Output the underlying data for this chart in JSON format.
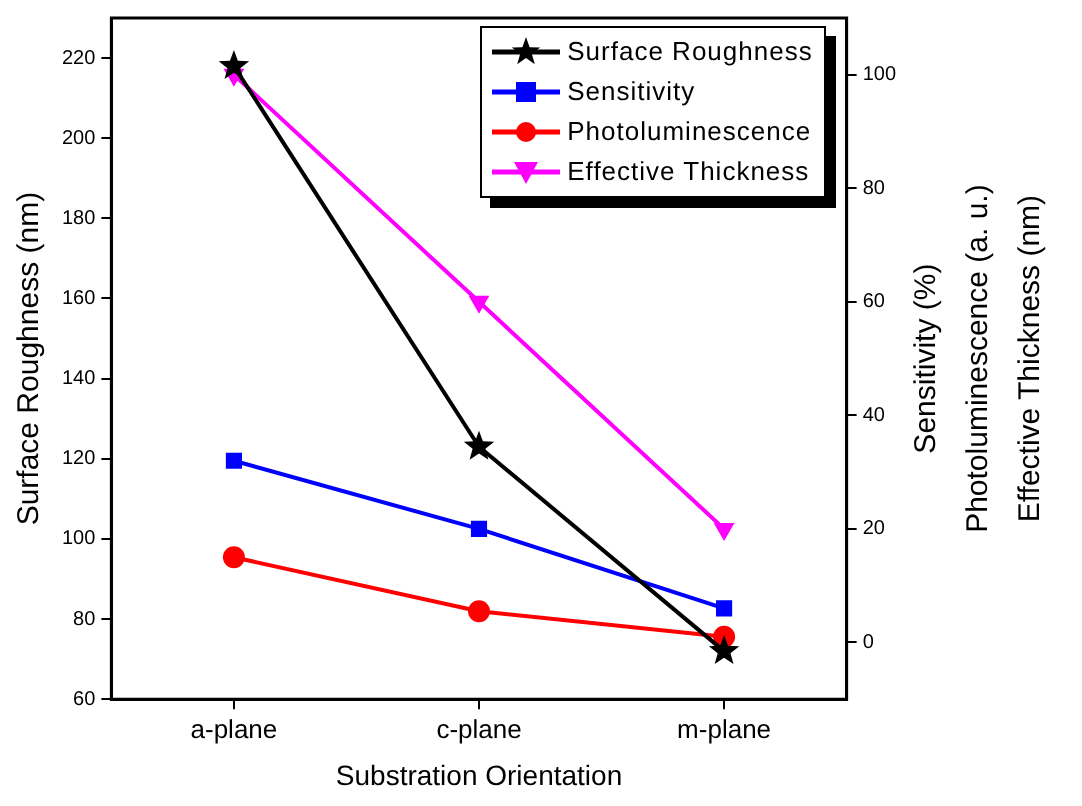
{
  "chart_data": {
    "type": "line",
    "xlabel": "Substration Orientation",
    "ylabel": "Surface Roughness (nm)",
    "y2label": "Sensitivity (%)\nPhotoluminescence (a. u.)\nEffective Thickness (nm)",
    "categories": [
      "a-plane",
      "c-plane",
      "m-plane"
    ],
    "series": [
      {
        "name": "Surface Roughness",
        "color": "#000000",
        "marker": "star",
        "values": [
          218,
          123,
          72
        ]
      },
      {
        "name": "Sensitivity",
        "color": "#0000ff",
        "marker": "square",
        "axis": "y2",
        "values": [
          32,
          20,
          6
        ]
      },
      {
        "name": "Photoluminescence",
        "color": "#ff0000",
        "marker": "circle",
        "axis": "y2",
        "values": [
          15,
          5.5,
          1
        ]
      },
      {
        "name": "Effective Thickness",
        "color": "#ff00ff",
        "marker": "triangle",
        "axis": "y2",
        "values": [
          100,
          60,
          20
        ]
      }
    ],
    "ylim": [
      60,
      230
    ],
    "yticks": [
      60,
      80,
      100,
      120,
      140,
      160,
      180,
      200,
      220
    ],
    "y2lim": [
      -10,
      110
    ],
    "y2ticks": [
      0,
      20,
      40,
      60,
      80,
      100
    ],
    "grid": false,
    "legend": "top right",
    "line_style": "solid"
  }
}
